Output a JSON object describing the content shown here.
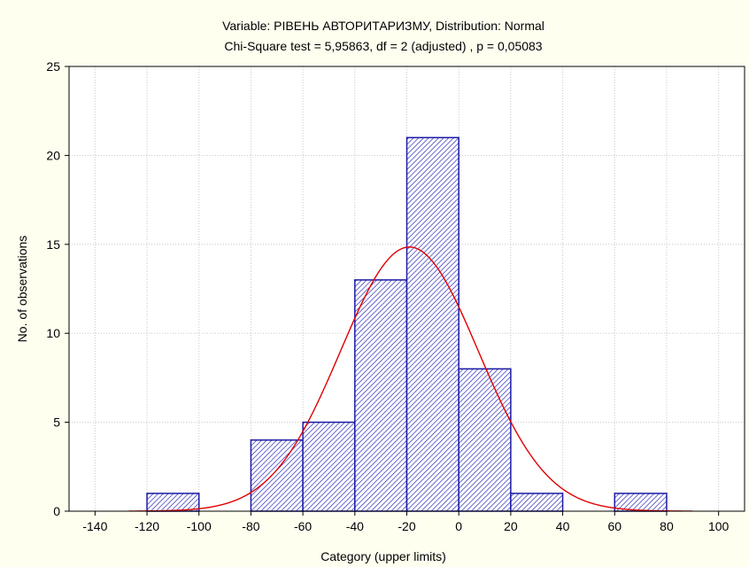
{
  "chart_data": {
    "type": "bar",
    "title": "Variable: РІВЕНЬ АВТОРИТАРИЗМУ, Distribution: Normal",
    "subtitle": "Chi-Square test = 5,95863, df = 2 (adjusted) , p = 0,05083",
    "xlabel": "Category (upper limits)",
    "ylabel": "No. of observations",
    "xlim": [
      -150,
      110
    ],
    "ylim": [
      0,
      25
    ],
    "x_ticks": [
      -140,
      -120,
      -100,
      -80,
      -60,
      -40,
      -20,
      0,
      20,
      40,
      60,
      80,
      100
    ],
    "y_ticks": [
      0,
      5,
      10,
      15,
      20,
      25
    ],
    "grid": true,
    "bins": [
      {
        "from": -120,
        "to": -100,
        "count": 1
      },
      {
        "from": -100,
        "to": -80,
        "count": 0
      },
      {
        "from": -80,
        "to": -60,
        "count": 4
      },
      {
        "from": -60,
        "to": -40,
        "count": 5
      },
      {
        "from": -40,
        "to": -20,
        "count": 13
      },
      {
        "from": -20,
        "to": 0,
        "count": 21
      },
      {
        "from": 0,
        "to": 20,
        "count": 8
      },
      {
        "from": 20,
        "to": 40,
        "count": 1
      },
      {
        "from": 40,
        "to": 60,
        "count": 0
      },
      {
        "from": 60,
        "to": 80,
        "count": 1
      }
    ],
    "normal_fit": {
      "mean": -19,
      "peak": 14.85,
      "sd": 26.5,
      "x_range": [
        -127,
        90
      ]
    },
    "colors": {
      "bar_stroke": "#1a1aa6",
      "bar_hatch": "#2a2ab8",
      "bar_fill": "#ffffff",
      "curve": "#e00000",
      "grid": "#c8c8c8",
      "background": "#fffff0",
      "plot_background": "#ffffff"
    }
  }
}
